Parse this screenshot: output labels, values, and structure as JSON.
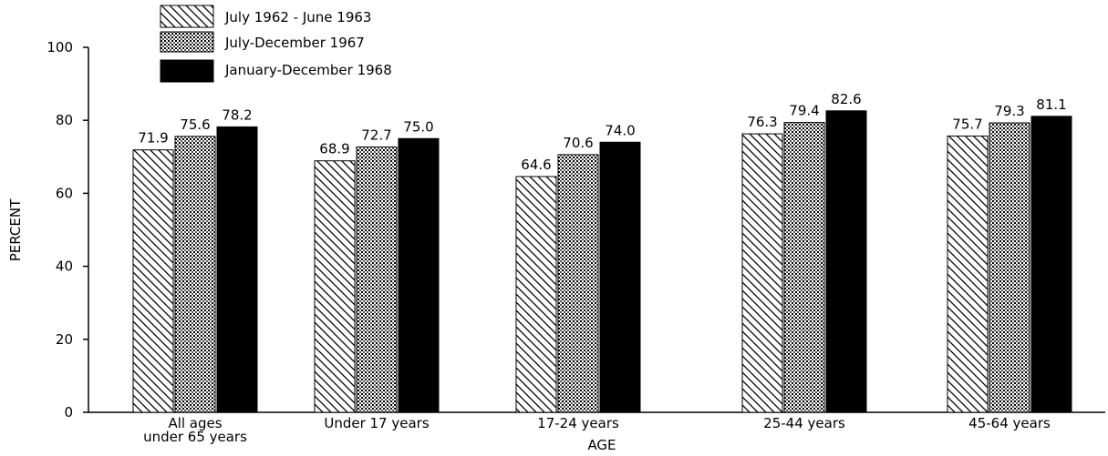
{
  "chart_data": {
    "type": "bar",
    "categories": [
      [
        "All  ages",
        "under 65 years"
      ],
      [
        "Under 17 years"
      ],
      [
        "17-24 years"
      ],
      [
        "25-44 years"
      ],
      [
        "45-64 years"
      ]
    ],
    "series": [
      {
        "name": "July 1962 - June 1963",
        "pattern": "hatch",
        "values": [
          71.9,
          68.9,
          64.6,
          76.3,
          75.7
        ],
        "labels": [
          "71.9",
          "68.9",
          "64.6",
          "76.3",
          "75.7"
        ]
      },
      {
        "name": "July-December 1967",
        "pattern": "dots",
        "values": [
          75.6,
          72.7,
          70.6,
          79.4,
          79.3
        ],
        "labels": [
          "75.6",
          "72.7",
          "70.6",
          "79.4",
          "79.3"
        ]
      },
      {
        "name": "January-December 1968",
        "pattern": "solid",
        "values": [
          78.2,
          75.0,
          74.0,
          82.6,
          81.1
        ],
        "labels": [
          "78.2",
          "75.0",
          "74.0",
          "82.6",
          "81.1"
        ]
      }
    ],
    "xlabel": "AGE",
    "ylabel": "PERCENT",
    "ylim": [
      0,
      100
    ],
    "yticks": [
      "0",
      "20",
      "40",
      "60",
      "80",
      "100"
    ],
    "legend_position": "top-left",
    "grid": false,
    "colors": {
      "ink": "#000000",
      "background": "#ffffff"
    }
  }
}
